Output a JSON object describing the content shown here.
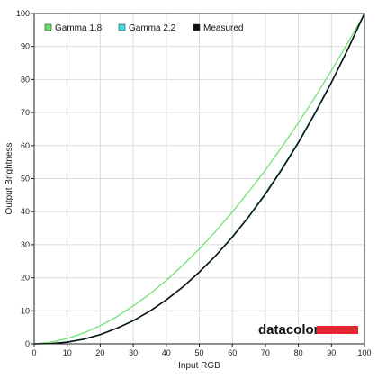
{
  "chart_data": {
    "type": "line",
    "title": "",
    "xlabel": "Input RGB",
    "ylabel": "Output Brightness",
    "xlim": [
      0,
      100
    ],
    "ylim": [
      0,
      100
    ],
    "xticks": [
      0,
      10,
      20,
      30,
      40,
      50,
      60,
      70,
      80,
      90,
      100
    ],
    "yticks": [
      0,
      10,
      20,
      30,
      40,
      50,
      60,
      70,
      80,
      90,
      100
    ],
    "grid": true,
    "legend": "top-left",
    "x": [
      0,
      5,
      10,
      15,
      20,
      25,
      30,
      35,
      40,
      45,
      50,
      55,
      60,
      65,
      70,
      75,
      80,
      85,
      90,
      95,
      100
    ],
    "series": [
      {
        "name": "Gamma 1.8",
        "color": "#66e066",
        "values": [
          0,
          0.5,
          1.6,
          3.3,
          5.5,
          8.2,
          11.5,
          15.1,
          19.2,
          23.8,
          28.7,
          34.1,
          39.9,
          46.1,
          52.6,
          59.6,
          66.9,
          74.6,
          82.7,
          91.2,
          100
        ]
      },
      {
        "name": "Gamma 2.2",
        "color": "#3ee0e0",
        "values": [
          0,
          0.1,
          0.6,
          1.5,
          2.9,
          4.7,
          7.1,
          9.9,
          13.3,
          17.3,
          21.8,
          26.8,
          32.5,
          38.7,
          45.6,
          53.1,
          61.2,
          70.0,
          79.3,
          89.3,
          100
        ]
      },
      {
        "name": "Measured",
        "color": "#111111",
        "values": [
          0,
          0.1,
          0.5,
          1.4,
          2.8,
          4.7,
          7.0,
          9.9,
          13.3,
          17.2,
          21.7,
          26.7,
          32.3,
          38.5,
          45.3,
          52.8,
          60.9,
          69.7,
          79.1,
          89.2,
          100
        ]
      }
    ]
  },
  "logo": {
    "text": "datacolor",
    "bar_color": "#e8242f"
  }
}
